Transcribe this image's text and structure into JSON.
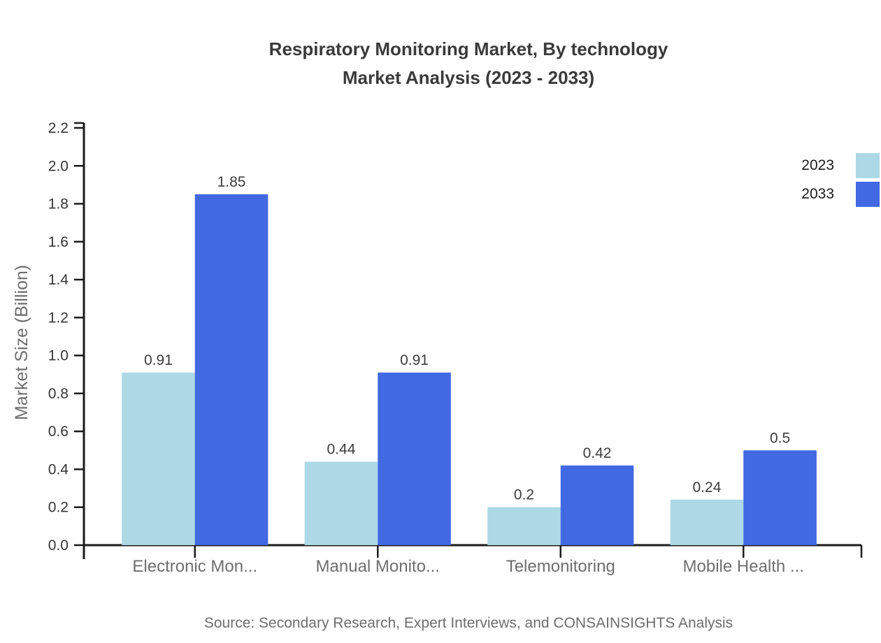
{
  "title": {
    "line1": "Respiratory Monitoring Market, By technology",
    "line2": "Market Analysis (2023 - 2033)"
  },
  "source": "Source: Secondary Research, Expert Interviews, and CONSAINSIGHTS Analysis",
  "chart_data": {
    "type": "bar",
    "categories": [
      "Electronic Mon...",
      "Manual Monito...",
      "Telemonitoring",
      "Mobile Health ..."
    ],
    "series": [
      {
        "name": "2023",
        "color": "#ADD8E6",
        "values": [
          0.91,
          0.44,
          0.2,
          0.24
        ]
      },
      {
        "name": "2033",
        "color": "#4169E1",
        "values": [
          1.85,
          0.91,
          0.42,
          0.5
        ]
      }
    ],
    "data_labels": [
      [
        "0.91",
        "0.44",
        "0.2",
        "0.24"
      ],
      [
        "1.85",
        "0.91",
        "0.42",
        "0.5"
      ]
    ],
    "ylabel": "Market Size (Billion)",
    "xlabel": "",
    "ylim": [
      0,
      2.2
    ],
    "ytick_step": 0.2,
    "ytick_labels": [
      "0.0",
      "0.2",
      "0.4",
      "0.6",
      "0.8",
      "1.0",
      "1.2",
      "1.4",
      "1.6",
      "1.8",
      "2.0",
      "2.2"
    ],
    "grid": false,
    "legend_position": "top-right"
  },
  "colors": {
    "series_2023": "#ADD8E6",
    "series_2033": "#4169E1",
    "title_text": "#3a3a3a",
    "axis_line": "#1a1a1a",
    "tick_label": "#363636",
    "category_label": "#6e6e6e",
    "data_label": "#3d3d3d",
    "muted_text": "#6e6e6e"
  }
}
